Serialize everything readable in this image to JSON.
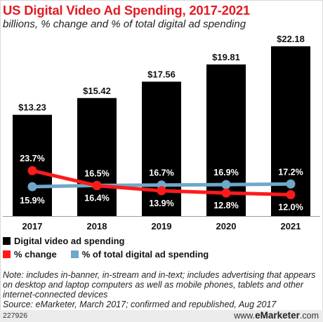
{
  "header": {
    "title": "US Digital Video Ad Spending, 2017-2021",
    "subtitle": "billions, % change and % of total digital ad spending"
  },
  "chart_data": {
    "type": "bar",
    "categories": [
      "2017",
      "2018",
      "2019",
      "2020",
      "2021"
    ],
    "series": [
      {
        "name": "Digital video ad spending",
        "type": "bar",
        "values": [
          13.23,
          15.42,
          17.56,
          19.81,
          22.18
        ],
        "labels": [
          "$13.23",
          "$15.42",
          "$17.56",
          "$19.81",
          "$22.18"
        ],
        "color": "#000000"
      },
      {
        "name": "% change",
        "type": "line",
        "values": [
          23.7,
          16.4,
          13.9,
          12.8,
          12.0
        ],
        "labels": [
          "23.7%",
          "16.4%",
          "13.9%",
          "12.8%",
          "12.0%"
        ],
        "color": "#ff1a1a"
      },
      {
        "name": "% of total digital ad spending",
        "type": "line",
        "values": [
          15.9,
          16.5,
          16.7,
          16.9,
          17.2
        ],
        "labels": [
          "15.9%",
          "16.5%",
          "16.7%",
          "16.9%",
          "17.2%"
        ],
        "color": "#6fa8c8"
      }
    ],
    "bar_ylim": [
      0,
      24
    ],
    "legend_position": "bottom-left",
    "grid": false
  },
  "note": "Note: includes in-banner, in-stream and in-text; includes advertising that appears on desktop and laptop computers as well as mobile phones, tablets and other internet-connected devices",
  "source": "Source: eMarketer, March 2017; confirmed and republished, Aug 2017",
  "footer": {
    "chart_id": "227926",
    "logo_prefix": "www.",
    "logo_brand": "eMarketer",
    "logo_suffix": ".com"
  }
}
